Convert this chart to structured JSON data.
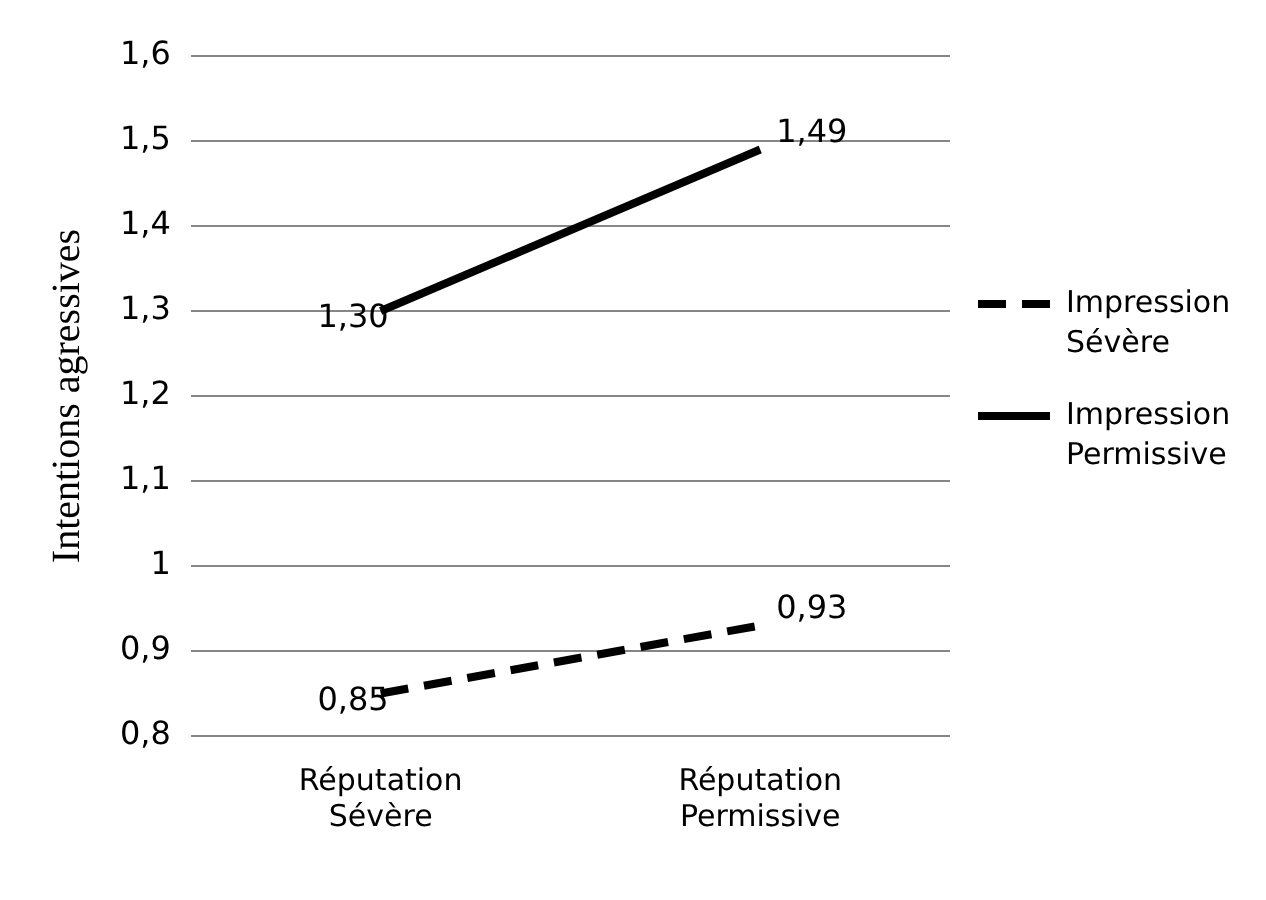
{
  "chart_data": {
    "type": "line",
    "ylabel": "Intentions agressives",
    "categories": [
      "Réputation Sévère",
      "Réputation Permissive"
    ],
    "series": [
      {
        "name": "Impression Sévère",
        "color": "#000000",
        "values": [
          0.85,
          0.93
        ],
        "value_labels": [
          "0,85",
          "0,93"
        ],
        "line_style": "dashed"
      },
      {
        "name": "Impression Permissive",
        "color": "#000000",
        "values": [
          1.3,
          1.49
        ],
        "value_labels": [
          "1,30",
          "1,49"
        ],
        "line_style": "solid"
      }
    ],
    "ylim": [
      0.8,
      1.6
    ],
    "yticks": [
      {
        "value": 0.8,
        "label": "0,8"
      },
      {
        "value": 0.9,
        "label": "0,9"
      },
      1,
      {
        "value": 1.1,
        "label": "1,1"
      },
      {
        "value": 1.2,
        "label": "1,2"
      },
      {
        "value": 1.3,
        "label": "1,3"
      },
      {
        "value": 1.4,
        "label": "1,4"
      },
      {
        "value": 1.5,
        "label": "1,5"
      },
      {
        "value": 1.6,
        "label": "1,6"
      }
    ],
    "grid": "y",
    "legend": "right",
    "marker": "none"
  }
}
